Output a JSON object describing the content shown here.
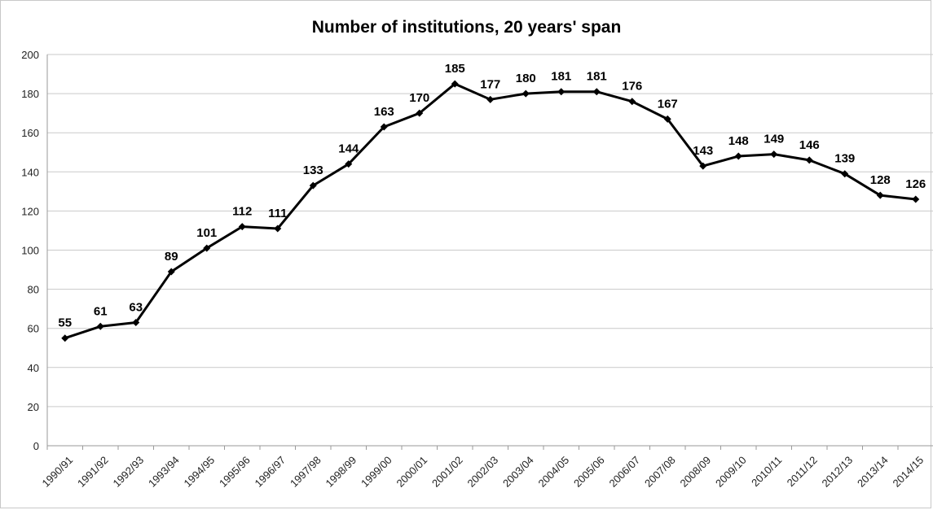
{
  "chart_data": {
    "type": "line",
    "title": "Number of institutions, 20 years' span",
    "xlabel": "",
    "ylabel": "",
    "ylim": [
      0,
      200
    ],
    "yticks": [
      0,
      20,
      40,
      60,
      80,
      100,
      120,
      140,
      160,
      180,
      200
    ],
    "grid": true,
    "legend": "none",
    "categories": [
      "1990/91",
      "1991/92",
      "1992/93",
      "1993/94",
      "1994/95",
      "1995/96",
      "1996/97",
      "1997/98",
      "1998/99",
      "1999/00",
      "2000/01",
      "2001/02",
      "2002/03",
      "2003/04",
      "2004/05",
      "2005/06",
      "2006/07",
      "2007/08",
      "2008/09",
      "2009/10",
      "2010/11",
      "2011/12",
      "2012/13",
      "2013/14",
      "2014/15"
    ],
    "series": [
      {
        "values": [
          55,
          61,
          63,
          89,
          101,
          112,
          111,
          133,
          144,
          163,
          170,
          185,
          177,
          180,
          181,
          181,
          176,
          167,
          143,
          148,
          149,
          146,
          139,
          128,
          126
        ],
        "color": "#000000"
      }
    ],
    "data_labels": true
  }
}
